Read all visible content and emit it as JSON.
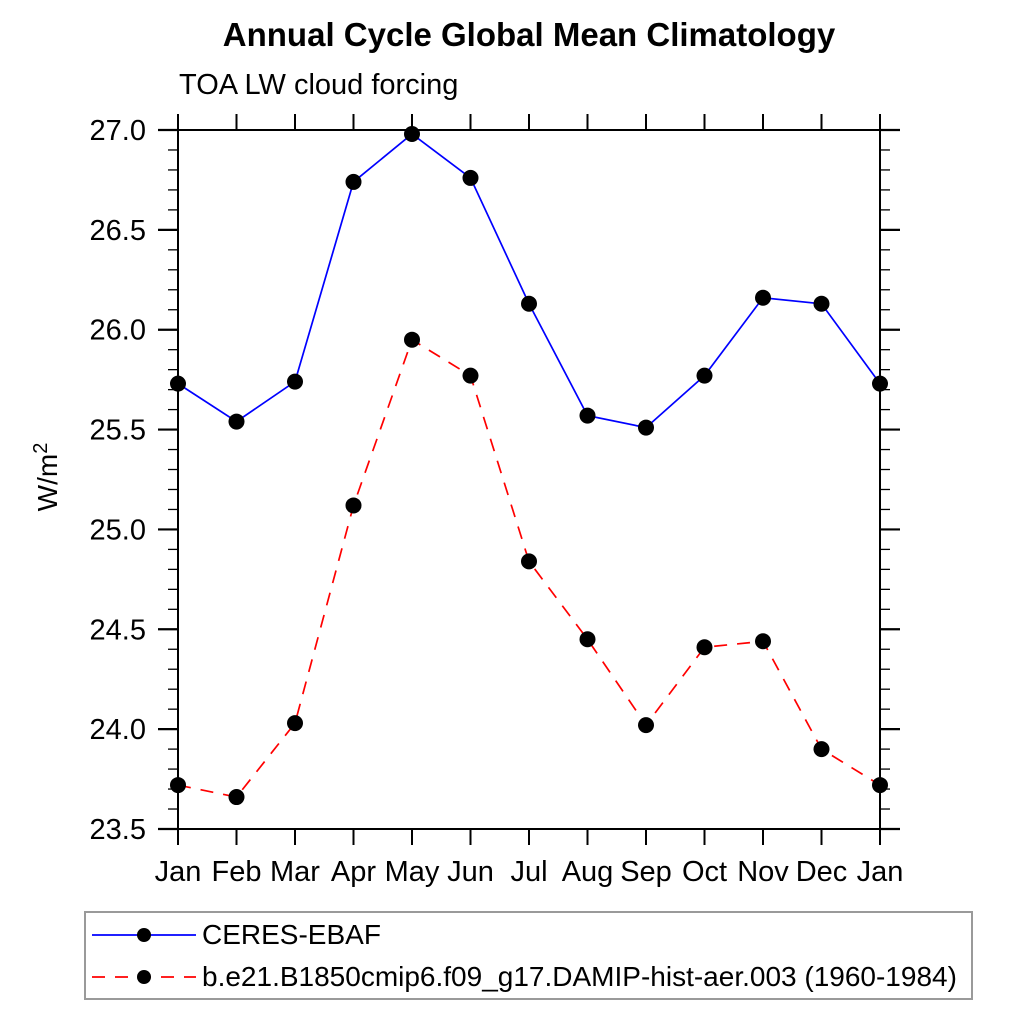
{
  "chart_data": {
    "type": "line",
    "title": "Annual Cycle Global Mean Climatology",
    "subtitle": "TOA LW cloud forcing",
    "xlabel": "",
    "ylabel_base": "W/m",
    "ylabel_sup": "2",
    "x_categories": [
      "Jan",
      "Feb",
      "Mar",
      "Apr",
      "May",
      "Jun",
      "Jul",
      "Aug",
      "Sep",
      "Oct",
      "Nov",
      "Dec",
      "Jan"
    ],
    "ylim": [
      23.5,
      27.0
    ],
    "ytick_labels": [
      "23.5",
      "24.0",
      "24.5",
      "25.0",
      "25.5",
      "26.0",
      "26.5",
      "27.0"
    ],
    "ytick_minor_step": 0.1,
    "grid": "off",
    "legend_position": "bottom-left-box",
    "axis_color": "#000000",
    "series": [
      {
        "name": "CERES-EBAF",
        "line_color": "#0000ff",
        "line_style": "solid",
        "marker": "filled-circle",
        "marker_color": "#000000",
        "values": [
          25.73,
          25.54,
          25.74,
          26.74,
          26.98,
          26.76,
          26.13,
          25.57,
          25.51,
          25.77,
          26.16,
          26.13,
          25.73
        ]
      },
      {
        "name": "b.e21.B1850cmip6.f09_g17.DAMIP-hist-aer.003 (1960-1984)",
        "line_color": "#ff0000",
        "line_style": "dashed",
        "marker": "filled-circle",
        "marker_color": "#000000",
        "values": [
          23.72,
          23.66,
          24.03,
          25.12,
          25.95,
          25.77,
          24.84,
          24.45,
          24.02,
          24.41,
          24.44,
          23.9,
          23.72
        ]
      }
    ]
  }
}
